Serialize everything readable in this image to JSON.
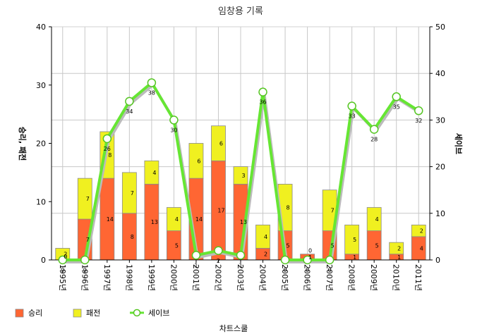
{
  "chart_data": {
    "type": "bar",
    "title": "임창용 기록",
    "ylabel": "승리, 패전",
    "y2label": "세이브",
    "footer": "차트스쿨",
    "categories": [
      "1995년",
      "1996년",
      "1997년",
      "1998년",
      "1999년",
      "2000년",
      "2001년",
      "2002년",
      "2003년",
      "2004년",
      "2005년",
      "2006년",
      "2007년",
      "2008년",
      "2009년",
      "2010년",
      "2011년"
    ],
    "ylim": [
      0,
      40
    ],
    "y_ticks": [
      0,
      10,
      20,
      30,
      40
    ],
    "y2lim": [
      0,
      50
    ],
    "y2_ticks": [
      0,
      10,
      20,
      30,
      40,
      50
    ],
    "grid": true,
    "legend_position": "bottom-left",
    "series": [
      {
        "name": "승리",
        "kind": "bar",
        "stack": "a",
        "color": "#ff6633",
        "axis": "left",
        "values": [
          0,
          7,
          14,
          8,
          13,
          5,
          14,
          17,
          13,
          2,
          5,
          1,
          5,
          1,
          5,
          1,
          4
        ]
      },
      {
        "name": "패전",
        "kind": "bar",
        "stack": "a",
        "color": "#f0f020",
        "axis": "left",
        "values": [
          2,
          7,
          8,
          7,
          4,
          4,
          6,
          6,
          3,
          4,
          8,
          0,
          7,
          5,
          4,
          2,
          2
        ]
      },
      {
        "name": "세이브",
        "kind": "line",
        "color": "#66e633",
        "axis": "right",
        "values": [
          0,
          0,
          26,
          34,
          38,
          30,
          1,
          2,
          1,
          36,
          0,
          0,
          0,
          33,
          28,
          35,
          32
        ]
      }
    ],
    "data_labels": {
      "승리": [
        "0",
        "7",
        "14",
        "8",
        "13",
        "5",
        "14",
        "17",
        "13",
        "2",
        "5",
        "1",
        "5",
        "1",
        "5",
        "1",
        "4"
      ],
      "패전": [
        "2",
        "7",
        "8",
        "7",
        "4",
        "4",
        "6",
        "6",
        "3",
        "4",
        "8",
        "0",
        "7",
        "5",
        "4",
        "2",
        "2"
      ],
      "세이브": [
        "0",
        "0",
        "26",
        "34",
        "38",
        "30",
        "1",
        "2",
        "1",
        "36",
        "0",
        "0",
        "0",
        "33",
        "28",
        "35",
        "32"
      ]
    }
  }
}
